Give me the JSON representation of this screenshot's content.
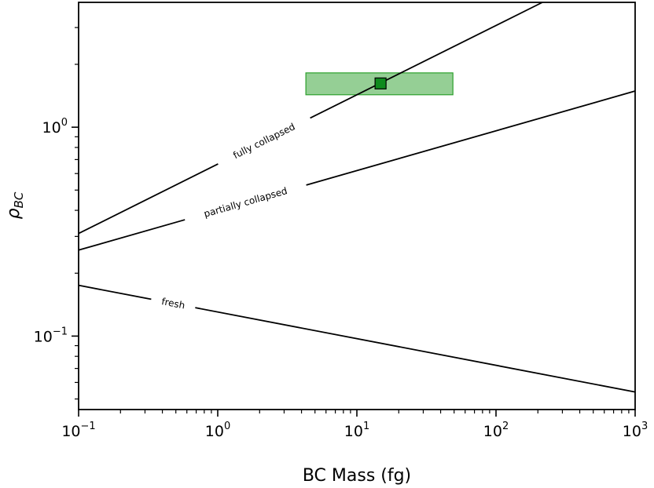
{
  "chart_data": {
    "type": "line",
    "x_scale": "log",
    "y_scale": "log",
    "xlabel": "BC Mass (fg)",
    "ylabel": "ρBC",
    "ylabel_main": "ρ",
    "ylabel_sub": "BC",
    "xlim": [
      0.1,
      1000
    ],
    "ylim": [
      0.0445,
      3.96
    ],
    "x_ticks": [
      {
        "value": 0.1,
        "base": "10",
        "exp": "−1"
      },
      {
        "value": 1,
        "base": "10",
        "exp": "0"
      },
      {
        "value": 10,
        "base": "10",
        "exp": "1"
      },
      {
        "value": 100,
        "base": "10",
        "exp": "2"
      },
      {
        "value": 1000,
        "base": "10",
        "exp": "3"
      }
    ],
    "y_ticks": [
      {
        "value": 0.1,
        "base": "10",
        "exp": "−1"
      },
      {
        "value": 1,
        "base": "10",
        "exp": "0"
      }
    ],
    "grid": false,
    "series": [
      {
        "name": "fully collapsed",
        "x": [
          0.1,
          215.5
        ],
        "y": [
          0.31,
          3.96
        ],
        "color": "#000000"
      },
      {
        "name": "partially collapsed",
        "x": [
          0.1,
          1000
        ],
        "y": [
          0.258,
          1.49
        ],
        "color": "#000000"
      },
      {
        "name": "fresh",
        "x": [
          0.1,
          1000
        ],
        "y": [
          0.175,
          0.054
        ],
        "color": "#000000"
      }
    ],
    "shaded_region": {
      "x": [
        4.3,
        49
      ],
      "y": [
        1.43,
        1.82
      ],
      "color": "#2ca02c"
    },
    "marker": {
      "x": 14.8,
      "y": 1.62,
      "shape": "square",
      "color": "#0f8a1e"
    }
  }
}
